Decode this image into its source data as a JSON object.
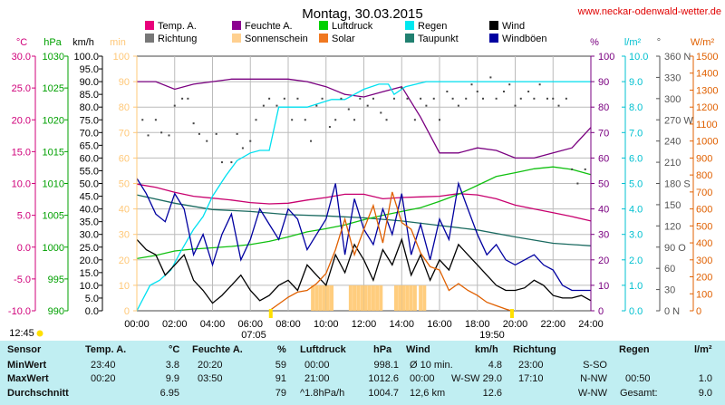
{
  "site_url": "www.neckar-odenwald-wetter.de",
  "chart_data": {
    "type": "line",
    "title": "Montag, 30.03.2015",
    "x_ticks": [
      "00:00",
      "02:00",
      "04:00",
      "06:00",
      "08:00",
      "10:00",
      "12:00",
      "14:00",
      "16:00",
      "18:00",
      "20:00",
      "22:00",
      "24:00"
    ],
    "x_range_hours": [
      0,
      24
    ],
    "sunrise": "07:05",
    "sunset": "19:50",
    "start_label": "12:45",
    "axes": {
      "temp": {
        "unit": "°C",
        "ticks": [
          "30.0",
          "25.0",
          "20.0",
          "15.0",
          "10.0",
          "5.0",
          "0.0",
          "-5.0",
          "-10.0"
        ],
        "range": [
          -10,
          30
        ],
        "color": "#d0007a"
      },
      "pressure": {
        "unit": "hPa",
        "ticks": [
          "1030",
          "1025",
          "1020",
          "1015",
          "1010",
          "1005",
          "1000",
          "995",
          "990"
        ],
        "range": [
          990,
          1030
        ],
        "color": "#00a000"
      },
      "wind": {
        "unit": "km/h",
        "ticks": [
          "100.0",
          "95.0",
          "90.0",
          "85.0",
          "80.0",
          "75.0",
          "70.0",
          "65.0",
          "60.0",
          "55.0",
          "50.0",
          "45.0",
          "40.0",
          "35.0",
          "30.0",
          "25.0",
          "20.0",
          "15.0",
          "10.0",
          "5.0",
          "0.0"
        ],
        "range": [
          0,
          100
        ],
        "color": "#000000"
      },
      "sunshine": {
        "unit": "min",
        "ticks": [
          "100",
          "90",
          "80",
          "70",
          "60",
          "50",
          "40",
          "30",
          "20",
          "10",
          "0"
        ],
        "range": [
          0,
          100
        ],
        "color": "#ffc878"
      },
      "humidity": {
        "unit": "%",
        "ticks": [
          "100",
          "90",
          "80",
          "70",
          "60",
          "50",
          "40",
          "30",
          "20",
          "10",
          "0"
        ],
        "range": [
          0,
          100
        ],
        "color": "#7a0080"
      },
      "rain": {
        "unit": "l/m²",
        "ticks": [
          "10.0",
          "9.0",
          "8.0",
          "7.0",
          "6.0",
          "5.0",
          "4.0",
          "3.0",
          "2.0",
          "1.0",
          "0.0"
        ],
        "range": [
          0,
          10
        ],
        "color": "#00c0d0"
      },
      "direction": {
        "unit": "°",
        "ticks": [
          "360 N",
          "330",
          "300",
          "270 W",
          "240",
          "210",
          "180 S",
          "150",
          "120",
          "90 O",
          "60",
          "30",
          "0 N"
        ],
        "range": [
          0,
          360
        ],
        "color": "#555555"
      },
      "solar": {
        "unit": "W/m²",
        "ticks": [
          "1500",
          "1400",
          "1300",
          "1200",
          "1100",
          "1000",
          "900",
          "800",
          "700",
          "600",
          "500",
          "400",
          "300",
          "200",
          "100",
          "0"
        ],
        "range": [
          0,
          1500
        ],
        "color": "#e06000"
      }
    },
    "legend": [
      {
        "label": "Temp. A.",
        "color": "#e8007a"
      },
      {
        "label": "Feuchte A.",
        "color": "#8b0090"
      },
      {
        "label": "Luftdruck",
        "color": "#00d000"
      },
      {
        "label": "Regen",
        "color": "#00e8f0"
      },
      {
        "label": "Wind",
        "color": "#000000"
      },
      {
        "label": "Richtung",
        "color": "#777777"
      },
      {
        "label": "Sonnenschein",
        "color": "#ffd090"
      },
      {
        "label": "Solar",
        "color": "#f07820"
      },
      {
        "label": "Taupunkt",
        "color": "#208070"
      },
      {
        "label": "Windböen",
        "color": "#0000a0"
      }
    ],
    "series": [
      {
        "name": "Temp. A.",
        "axis": "temp",
        "color": "#c8006e",
        "x": [
          0,
          1,
          2,
          3,
          4,
          5,
          6,
          7,
          8,
          9,
          10,
          11,
          12,
          13,
          14,
          15,
          16,
          17,
          18,
          19,
          20,
          21,
          22,
          23,
          24
        ],
        "values": [
          9.9,
          9.4,
          8.6,
          8.0,
          7.7,
          7.4,
          7.0,
          6.8,
          6.9,
          7.4,
          7.8,
          8.3,
          8.3,
          7.6,
          7.8,
          7.9,
          8.0,
          8.4,
          8.2,
          7.6,
          6.6,
          6.0,
          5.4,
          4.8,
          4.1
        ]
      },
      {
        "name": "Taupunkt",
        "axis": "temp",
        "color": "#1a6a60",
        "x": [
          0,
          2,
          4,
          6,
          8,
          10,
          12,
          14,
          16,
          18,
          20,
          22,
          24
        ],
        "values": [
          8.2,
          6.9,
          5.9,
          5.6,
          5.1,
          4.9,
          4.6,
          4.1,
          3.4,
          2.7,
          1.6,
          0.6,
          0.2
        ]
      },
      {
        "name": "Luftdruck",
        "axis": "pressure",
        "color": "#10c010",
        "x": [
          0,
          1,
          2,
          3,
          4,
          5,
          6,
          7,
          8,
          9,
          10,
          11,
          12,
          13,
          14,
          15,
          16,
          17,
          18,
          19,
          20,
          21,
          22,
          23,
          24
        ],
        "values": [
          998.2,
          998.7,
          999.4,
          999.7,
          999.9,
          1000.1,
          1000.4,
          1000.9,
          1001.6,
          1002.4,
          1002.9,
          1003.5,
          1004.3,
          1005.0,
          1005.6,
          1006.2,
          1007.2,
          1008.3,
          1009.7,
          1011.1,
          1011.7,
          1012.3,
          1012.6,
          1012.2,
          1011.4
        ]
      },
      {
        "name": "Feuchte A.",
        "axis": "humidity",
        "color": "#7a0080",
        "x": [
          0,
          1,
          2,
          3,
          4,
          5,
          6,
          7,
          8,
          9,
          10,
          11,
          12,
          13,
          14,
          15,
          16,
          17,
          18,
          19,
          20,
          21,
          22,
          23,
          24
        ],
        "values": [
          90,
          90,
          87,
          89,
          90,
          91,
          91,
          91,
          91,
          90,
          88,
          85,
          84,
          86,
          88,
          76,
          62,
          62,
          64,
          63,
          60,
          60,
          62,
          64,
          72
        ]
      },
      {
        "name": "Regen",
        "axis": "rain",
        "color": "#00e0f0",
        "x": [
          0,
          0.7,
          1.2,
          1.8,
          2.3,
          3,
          3.5,
          4,
          4.7,
          5.3,
          6,
          6.5,
          7,
          7.5,
          8,
          9,
          10.3,
          11,
          12,
          12.8,
          13.3,
          13.6,
          14.2,
          15.3,
          16,
          18,
          24
        ],
        "values": [
          0.0,
          1.0,
          1.2,
          1.6,
          2.3,
          3.2,
          3.7,
          4.5,
          5.3,
          5.9,
          6.2,
          6.3,
          6.3,
          8.0,
          8.0,
          8.0,
          8.3,
          8.3,
          8.7,
          8.9,
          8.9,
          8.5,
          8.8,
          9.0,
          9.0,
          9.0,
          9.0
        ]
      },
      {
        "name": "Wind",
        "axis": "wind",
        "color": "#000000",
        "x": [
          0,
          0.5,
          1,
          1.5,
          2,
          2.5,
          3,
          3.5,
          4,
          4.5,
          5,
          5.5,
          6,
          6.5,
          7,
          7.5,
          8,
          8.5,
          9,
          9.5,
          10,
          10.5,
          11,
          11.5,
          12,
          12.5,
          13,
          13.5,
          14,
          14.5,
          15,
          15.5,
          16,
          16.5,
          17,
          17.5,
          18,
          18.5,
          19,
          19.5,
          20,
          20.5,
          21,
          21.5,
          22,
          22.5,
          23,
          23.5,
          24
        ],
        "values": [
          28,
          24,
          22,
          14,
          18,
          22,
          12,
          8,
          3,
          6,
          10,
          14,
          8,
          4,
          6,
          10,
          12,
          8,
          18,
          14,
          10,
          22,
          15,
          26,
          20,
          12,
          24,
          18,
          28,
          14,
          22,
          12,
          20,
          16,
          26,
          22,
          18,
          14,
          10,
          8,
          8,
          9,
          12,
          10,
          6,
          5,
          5,
          6,
          4
        ]
      },
      {
        "name": "Windböen",
        "axis": "wind",
        "color": "#0000a0",
        "x": [
          0,
          0.5,
          1,
          1.5,
          2,
          2.5,
          3,
          3.5,
          4,
          4.5,
          5,
          5.5,
          6,
          6.5,
          7,
          7.5,
          8,
          8.5,
          9,
          9.5,
          10,
          10.5,
          11,
          11.5,
          12,
          12.5,
          13,
          13.5,
          14,
          14.5,
          15,
          15.5,
          16,
          16.5,
          17,
          17.5,
          18,
          18.5,
          19,
          19.5,
          20,
          20.5,
          21,
          21.5,
          22,
          22.5,
          23,
          23.5,
          24
        ],
        "values": [
          52,
          46,
          38,
          35,
          46,
          40,
          22,
          30,
          18,
          30,
          38,
          20,
          28,
          40,
          34,
          28,
          40,
          36,
          24,
          30,
          36,
          50,
          22,
          44,
          32,
          26,
          40,
          30,
          46,
          22,
          34,
          20,
          36,
          28,
          50,
          40,
          30,
          22,
          26,
          20,
          18,
          20,
          22,
          18,
          16,
          10,
          8,
          8,
          8
        ]
      },
      {
        "name": "Solar",
        "axis": "solar",
        "color": "#e06000",
        "x": [
          7.0,
          7.5,
          8,
          8.5,
          9,
          9.5,
          10,
          10.5,
          11,
          11.5,
          12,
          12.5,
          13,
          13.5,
          14,
          14.5,
          15,
          15.5,
          16,
          16.5,
          17,
          17.5,
          18,
          18.5,
          19,
          19.5,
          19.8
        ],
        "values": [
          0,
          40,
          80,
          110,
          120,
          160,
          220,
          360,
          540,
          330,
          480,
          620,
          400,
          700,
          520,
          480,
          340,
          260,
          240,
          120,
          160,
          120,
          90,
          50,
          30,
          10,
          0
        ]
      }
    ],
    "sunshine_bars": {
      "axis": "sunshine",
      "color": "#ffc870",
      "x": [
        9.3,
        9.5,
        9.7,
        9.9,
        10.1,
        10.3,
        11.3,
        11.5,
        11.7,
        11.9,
        12.1,
        12.3,
        12.5,
        12.7,
        12.9,
        13.7,
        13.9,
        14.1,
        14.3,
        14.5,
        14.7,
        15.0,
        15.2
      ],
      "values": [
        10,
        10,
        10,
        10,
        10,
        10,
        10,
        10,
        10,
        10,
        10,
        10,
        10,
        10,
        10,
        10,
        10,
        10,
        10,
        10,
        10,
        10,
        10
      ]
    },
    "direction_points": {
      "axis": "direction",
      "color": "#444444",
      "x": [
        0.3,
        0.6,
        1,
        1.3,
        1.7,
        2,
        2.4,
        2.7,
        3,
        3.3,
        3.7,
        4.2,
        4.5,
        5,
        5.3,
        5.6,
        6,
        6.3,
        6.7,
        7,
        7.4,
        7.8,
        8.2,
        8.5,
        8.9,
        9.2,
        9.5,
        9.8,
        10.2,
        10.5,
        10.8,
        11.2,
        11.5,
        11.8,
        12.2,
        12.5,
        12.9,
        13.2,
        13.6,
        14,
        14.3,
        14.7,
        15,
        15.3,
        15.7,
        16,
        16.4,
        16.7,
        17,
        17.4,
        17.7,
        18,
        18.3,
        18.7,
        19,
        19.4,
        19.7,
        20,
        20.3,
        20.7,
        21,
        21.3,
        21.7,
        22,
        22.3,
        22.7,
        23,
        23.3,
        23.7
      ],
      "values": [
        270,
        248,
        270,
        252,
        248,
        290,
        300,
        300,
        265,
        250,
        240,
        250,
        210,
        210,
        250,
        230,
        240,
        270,
        290,
        300,
        290,
        300,
        270,
        300,
        270,
        240,
        290,
        300,
        260,
        270,
        300,
        285,
        270,
        300,
        290,
        300,
        280,
        270,
        300,
        315,
        300,
        270,
        300,
        290,
        300,
        270,
        310,
        300,
        290,
        300,
        320,
        310,
        300,
        330,
        300,
        310,
        320,
        290,
        300,
        310,
        300,
        320,
        300,
        300,
        290,
        300,
        200,
        180,
        200
      ]
    }
  },
  "table": {
    "header": {
      "sensor": "Sensor",
      "temp": "Temp. A.",
      "temp_unit": "°C",
      "hum": "Feuchte A.",
      "hum_unit": "%",
      "press": "Luftdruck",
      "press_unit": "hPa",
      "wind": "Wind",
      "wind_unit": "km/h",
      "dir": "Richtung",
      "rain": "Regen",
      "rain_unit": "l/m²"
    },
    "min": {
      "label": "MinWert",
      "temp_time": "23:40",
      "temp_val": "3.8",
      "hum_time": "20:20",
      "hum_val": "59",
      "press_time": "00:00",
      "press_val": "998.1",
      "wind_time": "Ø 10 min.",
      "wind_val": "4.8",
      "dir_time": "23:00",
      "dir_val": "S-SO",
      "rain_time": "",
      "rain_val": ""
    },
    "max": {
      "label": "MaxWert",
      "temp_time": "00:20",
      "temp_val": "9.9",
      "hum_time": "03:50",
      "hum_val": "91",
      "press_time": "21:00",
      "press_val": "1012.6",
      "wind_time": "00:00",
      "wind_mid": "W-SW 29.0",
      "wind_val": "",
      "dir_time": "17:10",
      "dir_val": "N-NW",
      "rain_time": "00:50",
      "rain_val": "1.0"
    },
    "avg": {
      "label": "Durchschnitt",
      "temp_val": "6.95",
      "hum_val": "79",
      "press_time": "^1.8hPa/h",
      "press_val": "1004.7",
      "wind_time": "12,6 km",
      "wind_val": "12.6",
      "dir_val": "W-NW",
      "rain_time": "Gesamt:",
      "rain_val": "9.0"
    }
  }
}
